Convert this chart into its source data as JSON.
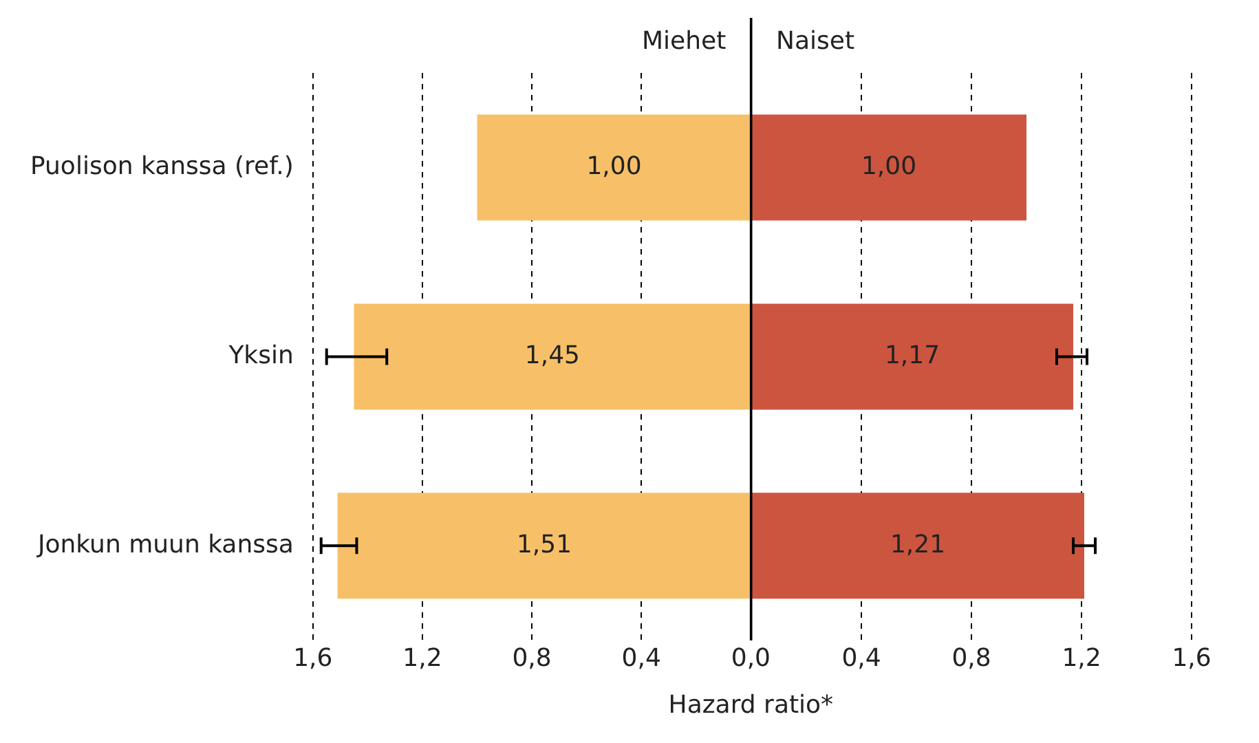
{
  "chart_data": [
    {
      "type": "bar",
      "orientation": "horizontal",
      "xlabel": "Hazard ratio*",
      "categories": [
        "Puolison kanssa (ref.)",
        "Yksin",
        "Jonkun muun kanssa"
      ],
      "series": [
        {
          "name": "Miehet",
          "color": "#f7c068",
          "values": [
            1.0,
            1.45,
            1.51
          ],
          "value_labels": [
            "1,00",
            "1,45",
            "1,51"
          ],
          "errors": [
            null,
            [
              1.33,
              1.55
            ],
            [
              1.44,
              1.57
            ]
          ]
        }
      ],
      "xlim": [
        1.6,
        0
      ],
      "xticks": [
        {
          "value": 1.6,
          "label": "1,6"
        },
        {
          "value": 1.2,
          "label": "1,2"
        },
        {
          "value": 0.8,
          "label": "0,8"
        },
        {
          "value": 0.4,
          "label": "0,4"
        },
        {
          "value": 0,
          "label": "0,0"
        }
      ],
      "grid": "x",
      "legend": false
    },
    {
      "type": "bar",
      "orientation": "horizontal",
      "categories": [
        null,
        null,
        null
      ],
      "series": [
        {
          "name": "Naiset",
          "color": "#cc5540",
          "values": [
            1.0,
            1.17,
            1.21
          ],
          "value_labels": [
            "1,00",
            "1,17",
            "1,21"
          ],
          "errors": [
            null,
            [
              1.11,
              1.22
            ],
            [
              1.17,
              1.25
            ]
          ]
        }
      ],
      "xlim": [
        0,
        1.6
      ],
      "xticks": [
        {
          "value": 0,
          "label": null
        },
        {
          "value": 0.4,
          "label": "0,4"
        },
        {
          "value": 0.8,
          "label": "0,8"
        },
        {
          "value": 1.2,
          "label": "1,2"
        },
        {
          "value": 1.6,
          "label": "1,6"
        }
      ],
      "grid": "x",
      "legend": false,
      "tick_labels": "x"
    }
  ]
}
